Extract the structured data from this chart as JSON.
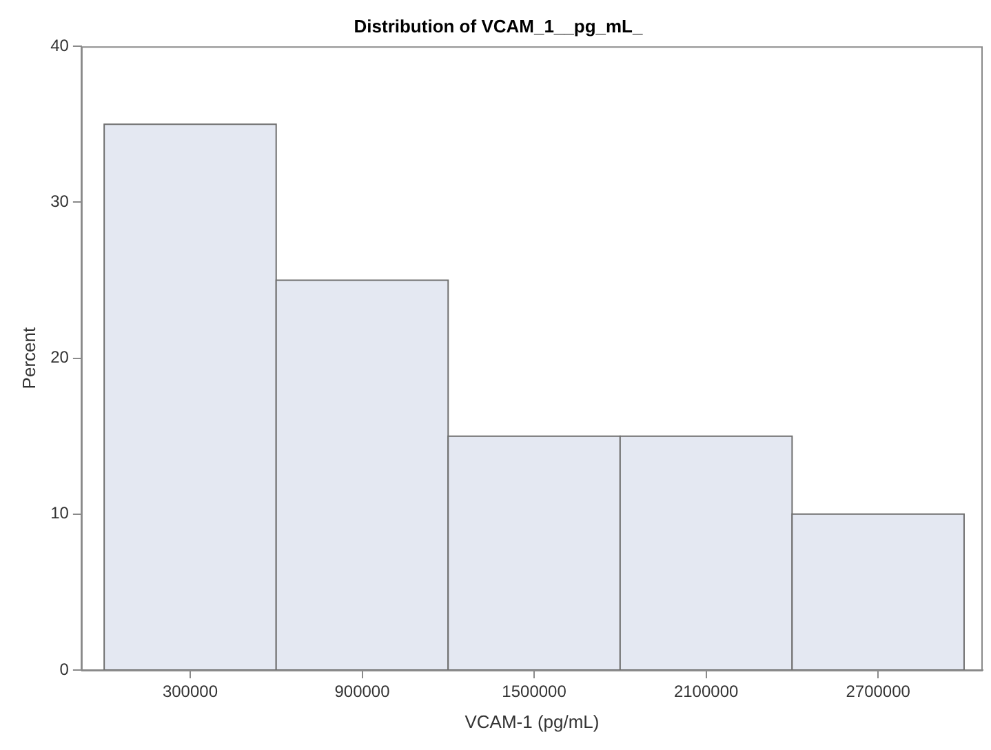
{
  "chart_data": {
    "type": "histogram",
    "title": "Distribution of VCAM_1__pg_mL_",
    "xlabel": "VCAM-1 (pg/mL)",
    "ylabel": "Percent",
    "bins": [
      0,
      600000,
      1200000,
      1800000,
      2400000,
      3000000
    ],
    "values": [
      35,
      25,
      15,
      15,
      10
    ],
    "color": "#e4e8f2",
    "xlim": [
      -80000,
      3065000
    ],
    "xticks": [
      300000,
      900000,
      1500000,
      2100000,
      2700000
    ],
    "ylim": [
      0,
      40
    ],
    "yticks": [
      0,
      10,
      20,
      30,
      40
    ],
    "grid": false,
    "legend": false
  }
}
